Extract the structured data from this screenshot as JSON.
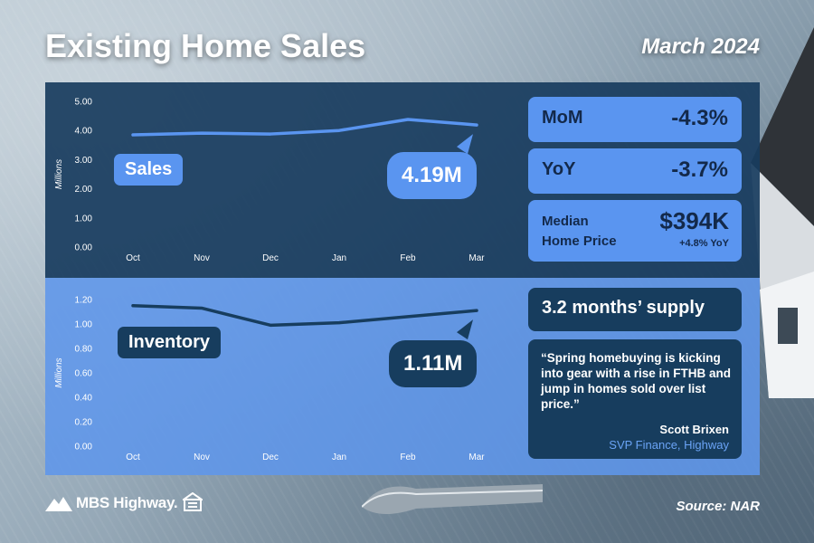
{
  "header": {
    "title": "Existing Home Sales",
    "date": "March 2024"
  },
  "stats": {
    "mom_label": "MoM",
    "mom_value": "-4.3%",
    "yoy_label": "YoY",
    "yoy_value": "-3.7%",
    "price_label_line1": "Median",
    "price_label_line2": "Home Price",
    "price_value": "$394K",
    "price_change": "+4.8% YoY",
    "supply": "3.2 months’ supply"
  },
  "quote": {
    "text": "“Spring homebuying is kicking into gear with a rise in FTHB and jump in homes sold over list price.”",
    "name": "Scott Brixen",
    "role": "SVP Finance, Highway"
  },
  "footer": {
    "logo_text": "MBS Highway.",
    "source": "Source: NAR"
  },
  "colors": {
    "navy": "#183c5e",
    "blue": "#5a95f0",
    "light_blue": "#6aa3f5"
  },
  "chart_data": [
    {
      "type": "line",
      "series_tag": "Sales",
      "callout": "4.19M",
      "ylabel": "Millions",
      "categories": [
        "Oct",
        "Nov",
        "Dec",
        "Jan",
        "Feb",
        "Mar"
      ],
      "values": [
        3.85,
        3.91,
        3.88,
        4.0,
        4.38,
        4.19
      ],
      "yticks": [
        "5.00",
        "4.00",
        "3.00",
        "2.00",
        "1.00",
        "0.00"
      ],
      "ylim": [
        0,
        5
      ],
      "line_color": "#5a95f0"
    },
    {
      "type": "line",
      "series_tag": "Inventory",
      "callout": "1.11M",
      "ylabel": "Millions",
      "categories": [
        "Oct",
        "Nov",
        "Dec",
        "Jan",
        "Feb",
        "Mar"
      ],
      "values": [
        1.15,
        1.13,
        0.99,
        1.01,
        1.06,
        1.11
      ],
      "yticks": [
        "1.20",
        "1.00",
        "0.80",
        "0.60",
        "0.40",
        "0.20",
        "0.00"
      ],
      "ylim": [
        0,
        1.2
      ],
      "line_color": "#173d5e"
    }
  ]
}
